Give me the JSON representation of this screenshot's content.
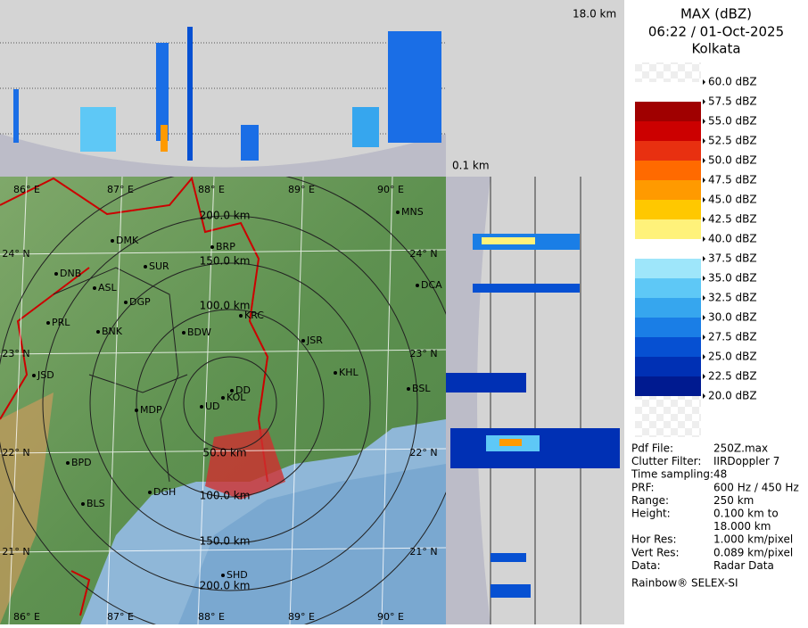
{
  "header": {
    "title": "MAX (dBZ)",
    "time": "06:22 / 01-Oct-2025",
    "site": "Kolkata"
  },
  "profile": {
    "top_height": "18.0 km",
    "bottom_height": "0.1 km"
  },
  "legend": [
    {
      "label": "60.0 dBZ",
      "color": "#f4f4f4"
    },
    {
      "label": "57.5 dBZ",
      "color": "#ffffff"
    },
    {
      "label": "55.0 dBZ",
      "color": "#a00000"
    },
    {
      "label": "52.5 dBZ",
      "color": "#cc0000"
    },
    {
      "label": "50.0 dBZ",
      "color": "#e83010"
    },
    {
      "label": "47.5 dBZ",
      "color": "#ff6a00"
    },
    {
      "label": "45.0 dBZ",
      "color": "#ff9a00"
    },
    {
      "label": "42.5 dBZ",
      "color": "#ffc800"
    },
    {
      "label": "40.0 dBZ",
      "color": "#fff27a"
    },
    {
      "label": "37.5 dBZ",
      "color": "#ffffff"
    },
    {
      "label": "35.0 dBZ",
      "color": "#9ee6fa"
    },
    {
      "label": "32.5 dBZ",
      "color": "#5ec8f6"
    },
    {
      "label": "30.0 dBZ",
      "color": "#36a6ee"
    },
    {
      "label": "27.5 dBZ",
      "color": "#1a7ee6"
    },
    {
      "label": "25.0 dBZ",
      "color": "#0650d2"
    },
    {
      "label": "22.5 dBZ",
      "color": "#0030b4"
    },
    {
      "label": "20.0 dBZ",
      "color": "#001a90"
    }
  ],
  "info": {
    "rows": [
      [
        "Pdf File:",
        "250Z.max"
      ],
      [
        "Clutter Filter:",
        "IIRDoppler 7"
      ],
      [
        "Time sampling:48"
      ],
      [
        "PRF:",
        "600 Hz / 450 Hz"
      ],
      [
        "Range:",
        "250 km"
      ],
      [
        "Height:",
        "0.100 km to"
      ],
      [
        "",
        "18.000 km"
      ],
      [
        "Hor Res:",
        "1.000 km/pixel"
      ],
      [
        "Vert Res:",
        "0.089 km/pixel"
      ],
      [
        "Data:",
        "Radar Data"
      ]
    ],
    "footer": "Rainbow® SELEX-SI"
  },
  "map": {
    "cities": [
      "DMK",
      "BRP",
      "SUR",
      "DNB",
      "ASL",
      "DGP",
      "KRC",
      "PRL",
      "BNK",
      "BDW",
      "JSR",
      "KHL",
      "JSD",
      "DD",
      "KOL",
      "UD",
      "MDP",
      "BPD",
      "DGH",
      "BLS",
      "SHD",
      "MNS",
      "DCA",
      "BSL"
    ],
    "lon_top": [
      "86° E",
      "87° E",
      "88° E",
      "89° E",
      "90° E"
    ],
    "lon_bottom": [
      "86° E",
      "87° E",
      "88° E",
      "89° E",
      "90° E"
    ],
    "lat_left": [
      "24° N",
      "23° N",
      "22° N",
      "21° N"
    ],
    "lat_right": [
      "24° N",
      "23° N",
      "22° N",
      "21° N"
    ],
    "ranges": [
      "200.0 km",
      "150.0 km",
      "100.0 km",
      "50.0 km",
      "100.0 km",
      "150.0 km",
      "200.0 km"
    ]
  }
}
